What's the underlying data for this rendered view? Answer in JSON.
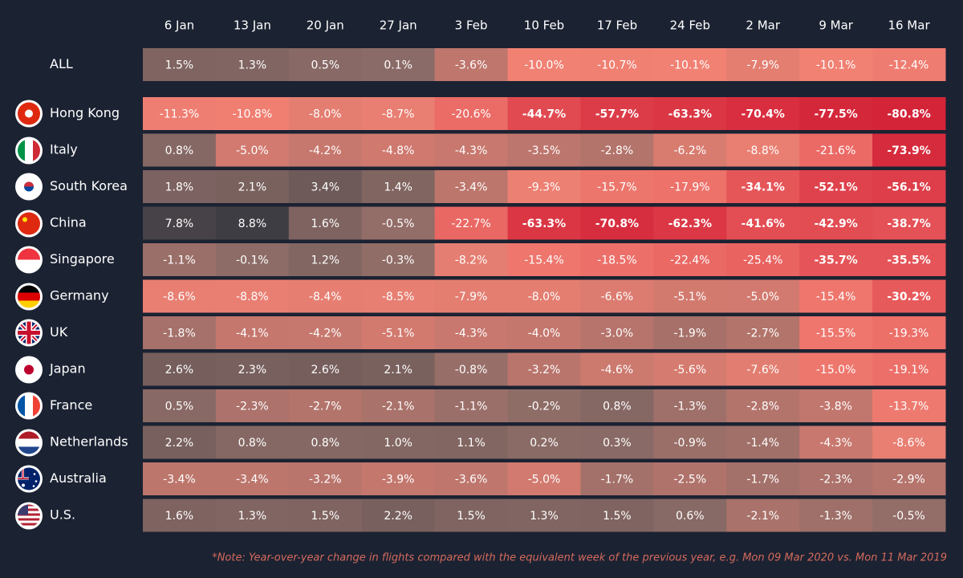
{
  "chart_data": {
    "type": "heatmap",
    "categories": [
      "6 Jan",
      "13 Jan",
      "20 Jan",
      "27 Jan",
      "3 Feb",
      "10 Feb",
      "17 Feb",
      "24 Feb",
      "2 Mar",
      "9 Mar",
      "16 Mar"
    ],
    "rows": [
      "ALL",
      "Hong Kong",
      "Italy",
      "South Korea",
      "China",
      "Singapore",
      "Germany",
      "UK",
      "Japan",
      "France",
      "Netherlands",
      "Australia",
      "U.S."
    ],
    "values": [
      [
        1.5,
        1.3,
        0.5,
        0.1,
        -3.6,
        -10.0,
        -10.7,
        -10.1,
        -7.9,
        -10.1,
        -12.4
      ],
      [
        -11.3,
        -10.8,
        -8.0,
        -8.7,
        -20.6,
        -44.7,
        -57.7,
        -63.3,
        -70.4,
        -77.5,
        -80.8
      ],
      [
        0.8,
        -5.0,
        -4.2,
        -4.8,
        -4.3,
        -3.5,
        -2.8,
        -6.2,
        -8.8,
        -21.6,
        -73.9
      ],
      [
        1.8,
        2.1,
        3.4,
        1.4,
        -3.4,
        -9.3,
        -15.7,
        -17.9,
        -34.1,
        -52.1,
        -56.1
      ],
      [
        7.8,
        8.8,
        1.6,
        -0.5,
        -22.7,
        -63.3,
        -70.8,
        -62.3,
        -41.6,
        -42.9,
        -38.7
      ],
      [
        -1.1,
        -0.1,
        1.2,
        -0.3,
        -8.2,
        -15.4,
        -18.5,
        -22.4,
        -25.4,
        -35.7,
        -35.5
      ],
      [
        -8.6,
        -8.8,
        -8.4,
        -8.5,
        -7.9,
        -8.0,
        -6.6,
        -5.1,
        -5.0,
        -15.4,
        -30.2
      ],
      [
        -1.8,
        -4.1,
        -4.2,
        -5.1,
        -4.3,
        -4.0,
        -3.0,
        -1.9,
        -2.7,
        -15.5,
        -19.3
      ],
      [
        2.6,
        2.3,
        2.6,
        2.1,
        -0.8,
        -3.2,
        -4.6,
        -5.6,
        -7.6,
        -15.0,
        -19.1
      ],
      [
        0.5,
        -2.3,
        -2.7,
        -2.1,
        -1.1,
        -0.2,
        0.8,
        -1.3,
        -2.8,
        -3.8,
        -13.7
      ],
      [
        2.2,
        0.8,
        0.8,
        1.0,
        1.1,
        0.2,
        0.3,
        -0.9,
        -1.4,
        -4.3,
        -8.6
      ],
      [
        -3.4,
        -3.4,
        -3.2,
        -3.9,
        -3.6,
        -5.0,
        -1.7,
        -2.5,
        -1.7,
        -2.3,
        -2.9
      ],
      [
        1.6,
        1.3,
        1.5,
        2.2,
        1.5,
        1.3,
        1.5,
        0.6,
        -2.1,
        -1.3,
        -0.5
      ]
    ],
    "value_labels": [
      [
        "1.5%",
        "1.3%",
        "0.5%",
        "0.1%",
        "-3.6%",
        "-10.0%",
        "-10.7%",
        "-10.1%",
        "-7.9%",
        "-10.1%",
        "-12.4%"
      ],
      [
        "-11.3%",
        "-10.8%",
        "-8.0%",
        "-8.7%",
        "-20.6%",
        "-44.7%",
        "-57.7%",
        "-63.3%",
        "-70.4%",
        "-77.5%",
        "-80.8%"
      ],
      [
        "0.8%",
        "-5.0%",
        "-4.2%",
        "-4.8%",
        "-4.3%",
        "-3.5%",
        "-2.8%",
        "-6.2%",
        "-8.8%",
        "-21.6%",
        "-73.9%"
      ],
      [
        "1.8%",
        "2.1%",
        "3.4%",
        "1.4%",
        "-3.4%",
        "-9.3%",
        "-15.7%",
        "-17.9%",
        "-34.1%",
        "-52.1%",
        "-56.1%"
      ],
      [
        "7.8%",
        "8.8%",
        "1.6%",
        "-0.5%",
        "-22.7%",
        "-63.3%",
        "-70.8%",
        "-62.3%",
        "-41.6%",
        "-42.9%",
        "-38.7%"
      ],
      [
        "-1.1%",
        "-0.1%",
        "1.2%",
        "-0.3%",
        "-8.2%",
        "-15.4%",
        "-18.5%",
        "-22.4%",
        "-25.4%",
        "-35.7%",
        "-35.5%"
      ],
      [
        "-8.6%",
        "-8.8%",
        "-8.4%",
        "-8.5%",
        "-7.9%",
        "-8.0%",
        "-6.6%",
        "-5.1%",
        "-5.0%",
        "-15.4%",
        "-30.2%"
      ],
      [
        "-1.8%",
        "-4.1%",
        "-4.2%",
        "-5.1%",
        "-4.3%",
        "-4.0%",
        "-3.0%",
        "-1.9%",
        "-2.7%",
        "-15.5%",
        "-19.3%"
      ],
      [
        "2.6%",
        "2.3%",
        "2.6%",
        "2.1%",
        "-0.8%",
        "-3.2%",
        "-4.6%",
        "-5.6%",
        "-7.6%",
        "-15.0%",
        "-19.1%"
      ],
      [
        "0.5%",
        "-2.3%",
        "-2.7%",
        "-2.1%",
        "-1.1%",
        "-0.2%",
        "0.8%",
        "-1.3%",
        "-2.8%",
        "-3.8%",
        "-13.7%"
      ],
      [
        "2.2%",
        "0.8%",
        "0.8%",
        "1.0%",
        "1.1%",
        "0.2%",
        "0.3%",
        "-0.9%",
        "-1.4%",
        "-4.3%",
        "-8.6%"
      ],
      [
        "-3.4%",
        "-3.4%",
        "-3.2%",
        "-3.9%",
        "-3.6%",
        "-5.0%",
        "-1.7%",
        "-2.5%",
        "-1.7%",
        "-2.3%",
        "-2.9%"
      ],
      [
        "1.6%",
        "1.3%",
        "1.5%",
        "2.2%",
        "1.5%",
        "1.3%",
        "1.5%",
        "0.6%",
        "-2.1%",
        "-1.3%",
        "-0.5%"
      ]
    ],
    "note": "*Note: Year-over-year change in flights compared with the equivalent week of the previous year, e.g. Mon 09 Mar 2020 vs. Mon 11 Mar 2019"
  }
}
